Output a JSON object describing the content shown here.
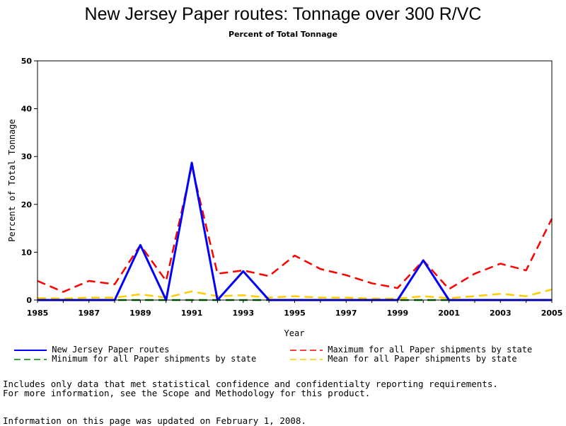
{
  "chart_data": {
    "type": "line",
    "title": "New Jersey Paper routes: Tonnage over 300 R/VC",
    "subtitle": "Percent of Total Tonnage",
    "xlabel": "Year",
    "ylabel": "Percent of Total Tonnage",
    "xlim": [
      1985,
      2005
    ],
    "ylim": [
      0,
      50
    ],
    "xticks": [
      "1985",
      "1987",
      "1989",
      "1991",
      "1993",
      "1995",
      "1997",
      "1999",
      "2001",
      "2003",
      "2005"
    ],
    "yticks": [
      "0",
      "10",
      "20",
      "30",
      "40",
      "50"
    ],
    "grid": false,
    "legend_position": "bottom",
    "x": [
      1985,
      1986,
      1987,
      1988,
      1989,
      1990,
      1991,
      1992,
      1993,
      1994,
      1995,
      1996,
      1997,
      1998,
      1999,
      2000,
      2001,
      2002,
      2003,
      2004,
      2005
    ],
    "series": [
      {
        "name": "New Jersey Paper routes",
        "color": "#0000ff",
        "dash": "solid",
        "values": [
          0,
          0,
          0,
          0,
          11.5,
          0,
          28.7,
          0,
          6,
          0,
          0,
          0,
          0,
          0,
          0,
          8.3,
          0,
          0,
          0,
          0,
          0
        ]
      },
      {
        "name": "Maximum for all Paper shipments by state",
        "color": "#ff0000",
        "dash": "dashed",
        "values": [
          4,
          1.7,
          4,
          3.3,
          11.5,
          4,
          28,
          5.5,
          6.2,
          5,
          9.3,
          6.5,
          5.2,
          3.5,
          2.5,
          8.3,
          2.3,
          5.5,
          7.6,
          6.2,
          17
        ]
      },
      {
        "name": "Minimum for all Paper shipments by state",
        "color": "#008000",
        "dash": "dashed",
        "values": [
          0,
          0,
          0,
          0,
          0,
          0,
          0,
          0,
          0,
          0,
          0,
          0,
          0,
          0,
          0,
          0,
          0,
          0,
          0,
          0,
          0
        ]
      },
      {
        "name": "Mean for all Paper shipments by state",
        "color": "#ffcc00",
        "dash": "dashed",
        "values": [
          0.4,
          0.3,
          0.5,
          0.5,
          1.2,
          0.5,
          1.8,
          0.8,
          1,
          0.5,
          0.8,
          0.5,
          0.5,
          0.3,
          0.3,
          0.8,
          0.4,
          0.8,
          1.3,
          0.8,
          2.2
        ]
      }
    ]
  },
  "notes": {
    "line1": "Includes only data that met statistical confidence and confidentialty reporting requirements.",
    "line2": "For more information, see the Scope and Methodology for this product.",
    "updated": "Information on this page was updated on February 1, 2008."
  }
}
